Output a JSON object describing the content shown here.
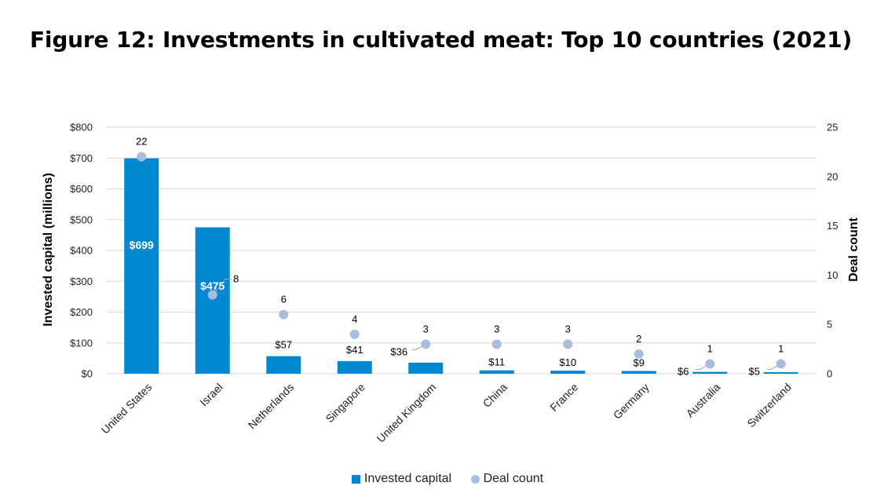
{
  "chart_data": {
    "type": "bar",
    "title": "Figure 12: Investments in cultivated meat: Top 10 countries (2021)",
    "categories": [
      "United States",
      "Israel",
      "Netherlands",
      "Singapore",
      "United Kingdom",
      "China",
      "France",
      "Germany",
      "Australia",
      "Switzerland"
    ],
    "series": [
      {
        "name": "Invested capital",
        "axis": "left",
        "type": "bar",
        "values": [
          699,
          475,
          57,
          41,
          36,
          11,
          10,
          9,
          6,
          5
        ],
        "labels": [
          "$699",
          "$475",
          "$57",
          "$41",
          "$36",
          "$11",
          "$10",
          "$9",
          "$6",
          "$5"
        ]
      },
      {
        "name": "Deal count",
        "axis": "right",
        "type": "scatter",
        "values": [
          22,
          8,
          6,
          4,
          3,
          3,
          3,
          2,
          1,
          1
        ],
        "labels": [
          "22",
          "8",
          "6",
          "4",
          "3",
          "3",
          "3",
          "2",
          "1",
          "1"
        ]
      }
    ],
    "ylabel": "Invested capital (millions)",
    "y2label": "Deal count",
    "ylim": [
      0,
      800
    ],
    "y2lim": [
      0,
      25
    ],
    "yticks": [
      "$0",
      "$100",
      "$200",
      "$300",
      "$400",
      "$500",
      "$600",
      "$700",
      "$800"
    ],
    "y2ticks": [
      "0",
      "5",
      "10",
      "15",
      "20",
      "25"
    ],
    "grid": true,
    "legend": "bottom"
  },
  "colors": {
    "bar": "#0288D1",
    "dot": "#A9BCE0",
    "grid": "#D9D9D9",
    "leader": "#A6A6A6"
  }
}
